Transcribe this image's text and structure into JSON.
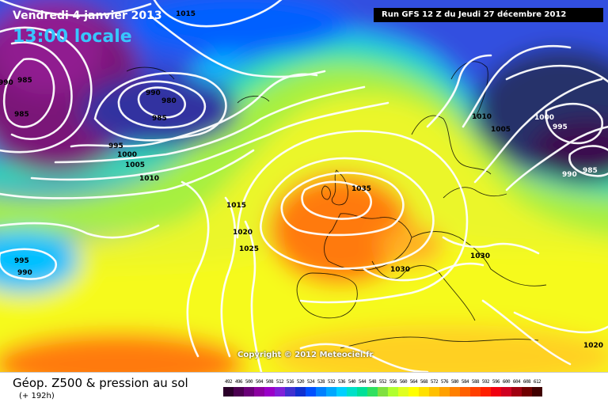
{
  "header": {
    "date": "Vendredi 4 janvier 2013",
    "time": "13:00 locale",
    "run": "Run GFS 12 Z du Jeudi 27 décembre 2012"
  },
  "copyright": "Copyright © 2012 Meteociel.fr",
  "footer": {
    "title": "Géop. Z500 & pression au sol",
    "subtitle": "(+ 192h)"
  },
  "isobar_labels": [
    "1015",
    "990",
    "985",
    "985",
    "990",
    "980",
    "985",
    "995",
    "1000",
    "1005",
    "1010",
    "1015",
    "1020",
    "1025",
    "995",
    "990",
    "1035",
    "1030",
    "1030",
    "1010",
    "1005",
    "1000",
    "995",
    "990",
    "985",
    "1020"
  ],
  "scale": {
    "values": [
      "492",
      "496",
      "500",
      "504",
      "508",
      "512",
      "516",
      "520",
      "524",
      "528",
      "532",
      "536",
      "540",
      "544",
      "548",
      "552",
      "556",
      "560",
      "564",
      "568",
      "572",
      "576",
      "580",
      "584",
      "588",
      "592",
      "596",
      "600",
      "604",
      "608",
      "612"
    ],
    "colors": [
      "#2a0029",
      "#4b0050",
      "#6a0078",
      "#8c00a0",
      "#9a00c8",
      "#8020d8",
      "#4030d0",
      "#1030d0",
      "#0050ff",
      "#0080ff",
      "#00a8ff",
      "#00d0ff",
      "#00e0c8",
      "#00e098",
      "#30e060",
      "#80e040",
      "#b0ff30",
      "#e0ff20",
      "#ffff00",
      "#ffe000",
      "#ffc000",
      "#ffa000",
      "#ff8000",
      "#ff6000",
      "#ff4000",
      "#ff2000",
      "#f00010",
      "#d00020",
      "#a00010",
      "#700000",
      "#400000"
    ]
  }
}
